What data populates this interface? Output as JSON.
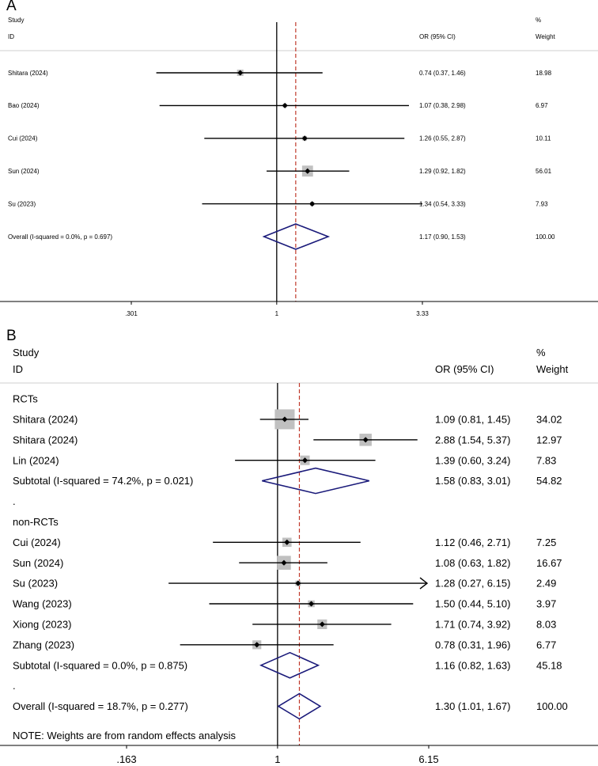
{
  "chart_data": [
    {
      "type": "forest",
      "panel_label": "A",
      "header": {
        "study": "Study",
        "id": "ID",
        "or": "OR (95% CI)",
        "pct": "%",
        "weight": "Weight"
      },
      "x_scale": "log",
      "xticks": [
        {
          "value": 0.301,
          "label": ".301"
        },
        {
          "value": 1,
          "label": "1"
        },
        {
          "value": 3.33,
          "label": "3.33"
        }
      ],
      "xlim": [
        0.301,
        3.33
      ],
      "reference_line": 1,
      "overall_line": 1.17,
      "rows": [
        {
          "kind": "study",
          "label": "Shitara (2024)",
          "or": 0.74,
          "lo": 0.37,
          "hi": 1.46,
          "ci_text": "0.74 (0.37, 1.46)",
          "weight_text": "18.98",
          "weight": 18.98
        },
        {
          "kind": "study",
          "label": "Bao (2024)",
          "or": 1.07,
          "lo": 0.38,
          "hi": 2.98,
          "ci_text": "1.07 (0.38, 2.98)",
          "weight_text": "6.97",
          "weight": 6.97
        },
        {
          "kind": "study",
          "label": "Cui (2024)",
          "or": 1.26,
          "lo": 0.55,
          "hi": 2.87,
          "ci_text": "1.26 (0.55, 2.87)",
          "weight_text": "10.11",
          "weight": 10.11
        },
        {
          "kind": "study",
          "label": "Sun (2024)",
          "or": 1.29,
          "lo": 0.92,
          "hi": 1.82,
          "ci_text": "1.29 (0.92, 1.82)",
          "weight_text": "56.01",
          "weight": 56.01
        },
        {
          "kind": "study",
          "label": "Su (2023)",
          "or": 1.34,
          "lo": 0.54,
          "hi": 3.33,
          "ci_text": "1.34 (0.54, 3.33)",
          "weight_text": "7.93",
          "weight": 7.93
        },
        {
          "kind": "overall",
          "label": "Overall  (I-squared = 0.0%, p = 0.697)",
          "or": 1.17,
          "lo": 0.9,
          "hi": 1.53,
          "ci_text": "1.17 (0.90, 1.53)",
          "weight_text": "100.00"
        }
      ]
    },
    {
      "type": "forest",
      "panel_label": "B",
      "header": {
        "study": "Study",
        "id": "ID",
        "or": "OR (95% CI)",
        "pct": "%",
        "weight": "Weight"
      },
      "x_scale": "log",
      "xticks": [
        {
          "value": 0.163,
          "label": ".163"
        },
        {
          "value": 1,
          "label": "1"
        },
        {
          "value": 6.15,
          "label": "6.15"
        }
      ],
      "xlim": [
        0.163,
        6.15
      ],
      "reference_line": 1,
      "overall_line": 1.3,
      "note": "NOTE: Weights are from random effects analysis",
      "rows": [
        {
          "kind": "group",
          "label": "RCTs"
        },
        {
          "kind": "study",
          "label": "Shitara (2024)",
          "or": 1.09,
          "lo": 0.81,
          "hi": 1.45,
          "ci_text": "1.09 (0.81, 1.45)",
          "weight_text": "34.02",
          "weight": 34.02
        },
        {
          "kind": "study",
          "label": "Shitara (2024)",
          "or": 2.88,
          "lo": 1.54,
          "hi": 5.37,
          "ci_text": "2.88 (1.54, 5.37)",
          "weight_text": "12.97",
          "weight": 12.97
        },
        {
          "kind": "study",
          "label": "Lin (2024)",
          "or": 1.39,
          "lo": 0.6,
          "hi": 3.24,
          "ci_text": "1.39 (0.60, 3.24)",
          "weight_text": "7.83",
          "weight": 7.83
        },
        {
          "kind": "subtotal",
          "label": "Subtotal  (I-squared = 74.2%, p = 0.021)",
          "or": 1.58,
          "lo": 0.83,
          "hi": 3.01,
          "ci_text": "1.58 (0.83, 3.01)",
          "weight_text": "54.82"
        },
        {
          "kind": "group",
          "label": "."
        },
        {
          "kind": "group",
          "label": "non-RCTs"
        },
        {
          "kind": "study",
          "label": "Cui (2024)",
          "or": 1.12,
          "lo": 0.46,
          "hi": 2.71,
          "ci_text": "1.12 (0.46, 2.71)",
          "weight_text": "7.25",
          "weight": 7.25
        },
        {
          "kind": "study",
          "label": "Sun (2024)",
          "or": 1.08,
          "lo": 0.63,
          "hi": 1.82,
          "ci_text": "1.08 (0.63, 1.82)",
          "weight_text": "16.67",
          "weight": 16.67
        },
        {
          "kind": "study",
          "label": "Su (2023)",
          "or": 1.28,
          "lo": 0.27,
          "hi": 6.15,
          "ci_text": "1.28 (0.27, 6.15)",
          "weight_text": "2.49",
          "weight": 2.49,
          "arrow_right": true
        },
        {
          "kind": "study",
          "label": "Wang (2023)",
          "or": 1.5,
          "lo": 0.44,
          "hi": 5.1,
          "ci_text": "1.50 (0.44, 5.10)",
          "weight_text": "3.97",
          "weight": 3.97
        },
        {
          "kind": "study",
          "label": "Xiong (2023)",
          "or": 1.71,
          "lo": 0.74,
          "hi": 3.92,
          "ci_text": "1.71 (0.74, 3.92)",
          "weight_text": "8.03",
          "weight": 8.03
        },
        {
          "kind": "study",
          "label": "Zhang (2023)",
          "or": 0.78,
          "lo": 0.31,
          "hi": 1.96,
          "ci_text": "0.78 (0.31, 1.96)",
          "weight_text": "6.77",
          "weight": 6.77
        },
        {
          "kind": "subtotal",
          "label": "Subtotal  (I-squared = 0.0%, p = 0.875)",
          "or": 1.16,
          "lo": 0.82,
          "hi": 1.63,
          "ci_text": "1.16 (0.82, 1.63)",
          "weight_text": "45.18"
        },
        {
          "kind": "group",
          "label": "."
        },
        {
          "kind": "overall",
          "label": "Overall  (I-squared = 18.7%, p = 0.277)",
          "or": 1.3,
          "lo": 1.01,
          "hi": 1.67,
          "ci_text": "1.30 (1.01, 1.67)",
          "weight_text": "100.00"
        }
      ]
    }
  ],
  "colors": {
    "diamond": "#1a1a7a",
    "overall_line": "#c0392b",
    "box": "#c0c0c0",
    "axis": "#000000"
  }
}
